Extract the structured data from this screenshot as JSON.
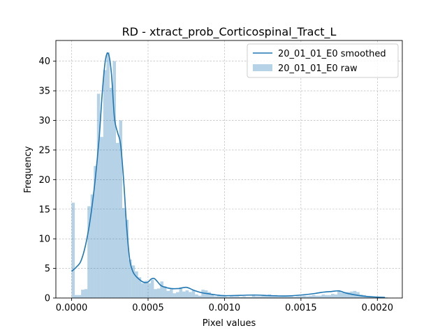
{
  "chart_data": {
    "type": "histogram",
    "title": "RD - xtract_prob_Corticospinal_Tract_L",
    "xlabel": "Pixel values",
    "ylabel": "Frequency",
    "xlim": [
      -0.000103,
      0.002163
    ],
    "ylim": [
      0,
      43.5
    ],
    "x_ticks": [
      0.0,
      0.0005,
      0.001,
      0.0015,
      0.002
    ],
    "x_tick_labels": [
      "0.0000",
      "0.0005",
      "0.0010",
      "0.0015",
      "0.0020"
    ],
    "y_ticks": [
      0,
      5,
      10,
      15,
      20,
      25,
      30,
      35,
      40
    ],
    "y_tick_labels": [
      "0",
      "5",
      "10",
      "15",
      "20",
      "25",
      "30",
      "35",
      "40"
    ],
    "grid": true,
    "legend_position": "top-right",
    "series": [
      {
        "name": "20_01_01_E0 smoothed",
        "kind": "line",
        "color": "#1f77b4",
        "x": [
          0.0,
          3e-05,
          6e-05,
          9e-05,
          0.00012,
          0.00015,
          0.00018,
          0.0002,
          0.00022,
          0.00024,
          0.00026,
          0.00028,
          0.0003,
          0.00032,
          0.00034,
          0.00036,
          0.00038,
          0.0004,
          0.00042,
          0.00044,
          0.00046,
          0.00048,
          0.0005,
          0.00052,
          0.00054,
          0.00056,
          0.00058,
          0.0006,
          0.00065,
          0.0007,
          0.00075,
          0.0008,
          0.00085,
          0.0009,
          0.00095,
          0.001,
          0.0011,
          0.0012,
          0.0013,
          0.0014,
          0.0015,
          0.0016,
          0.00165,
          0.0017,
          0.00175,
          0.0018,
          0.0019,
          0.002,
          0.00205
        ],
        "y": [
          4.5,
          5.2,
          6.2,
          8.8,
          13.0,
          19.0,
          27.0,
          34.5,
          40.0,
          41.3,
          38.0,
          30.5,
          28.0,
          26.0,
          20.0,
          12.0,
          6.5,
          4.5,
          3.7,
          3.2,
          2.8,
          2.6,
          2.7,
          3.2,
          3.3,
          2.8,
          2.2,
          1.9,
          1.6,
          1.6,
          1.8,
          1.3,
          0.9,
          0.7,
          0.5,
          0.4,
          0.45,
          0.5,
          0.4,
          0.35,
          0.5,
          0.8,
          1.0,
          1.1,
          1.2,
          0.8,
          0.35,
          0.15,
          0.1
        ]
      },
      {
        "name": "20_01_01_E0 raw",
        "kind": "bars",
        "color": "#1f77b4",
        "alpha": 0.33,
        "bin_width": 2.07e-05,
        "bin_start": 0.0,
        "values": [
          16.1,
          0.5,
          0.5,
          1.4,
          1.5,
          15.5,
          17.5,
          22.3,
          34.5,
          27.2,
          38.5,
          41.5,
          35.5,
          40.0,
          26.2,
          30.0,
          15.2,
          13.2,
          6.5,
          5.5,
          4.5,
          3.5,
          2.5,
          2.9,
          2.5,
          3.1,
          1.5,
          1.6,
          2.8,
          2.0,
          1.2,
          1.5,
          0.8,
          1.0,
          1.8,
          1.1,
          1.3,
          1.0,
          1.3,
          0.6,
          0.4,
          1.4,
          1.3,
          1.0,
          0.6,
          0.3,
          0.4,
          0.3,
          0.3,
          0.2,
          0.4,
          0.3,
          0.3,
          0.2,
          0.3,
          0.2,
          0.2,
          0.4,
          0.3,
          0.3,
          0.4,
          0.5,
          0.6,
          0.4,
          0.5,
          0.3,
          0.3,
          0.4,
          0.3,
          0.3,
          0.2,
          0.3,
          0.3,
          0.4,
          0.3,
          0.4,
          0.5,
          0.4,
          0.4,
          0.6,
          0.5,
          0.5,
          0.7,
          0.6,
          1.2,
          0.9,
          1.0,
          1.0,
          1.1,
          1.2,
          1.0,
          0.6,
          0.5,
          0.3,
          0.3,
          0.2,
          0.2,
          0.1,
          0.1,
          0.1
        ]
      }
    ]
  }
}
